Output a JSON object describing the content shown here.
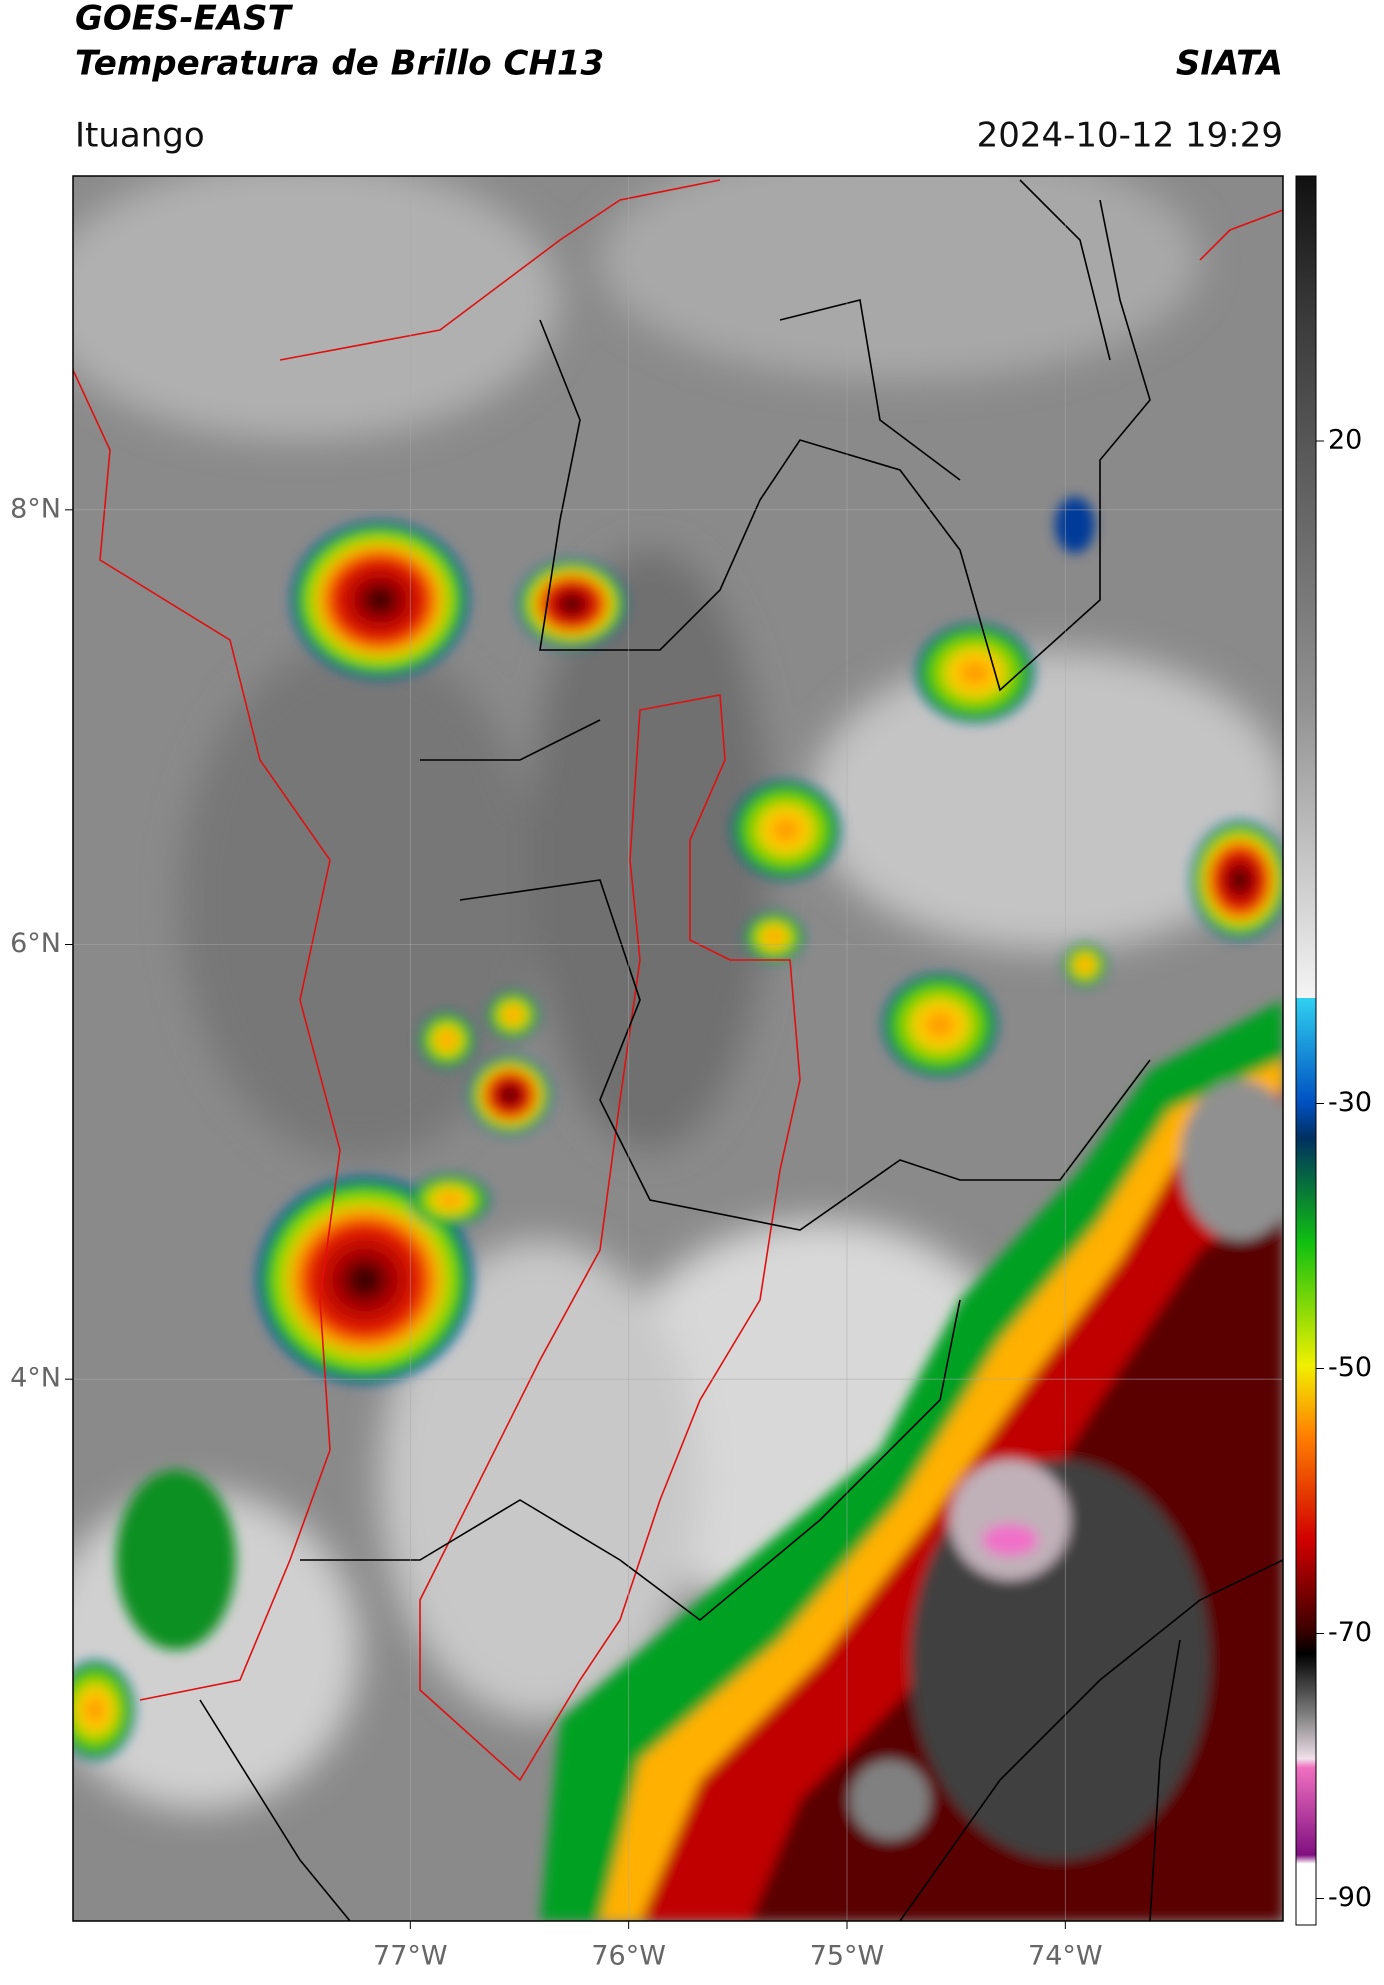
{
  "header": {
    "title": "GOES-EAST",
    "subtitle": "Temperatura de Brillo CH13",
    "source": "SIATA",
    "location": "Ituango",
    "datetime": "2024-10-12 19:29"
  },
  "map": {
    "xlim": [
      -78.545,
      -73.003
    ],
    "ylim": [
      1.507,
      9.536
    ],
    "xticks": [
      {
        "value": -77,
        "label": "77°W"
      },
      {
        "value": -76,
        "label": "76°W"
      },
      {
        "value": -75,
        "label": "75°W"
      },
      {
        "value": -74,
        "label": "74°W"
      }
    ],
    "yticks": [
      {
        "value": 8,
        "label": "8°N"
      },
      {
        "value": 6,
        "label": "6°N"
      },
      {
        "value": 4,
        "label": "4°N"
      }
    ],
    "grid": true
  },
  "colorbar": {
    "clim": [
      -92,
      40
    ],
    "ticks": [
      20,
      -30,
      -50,
      -70,
      -90
    ]
  }
}
